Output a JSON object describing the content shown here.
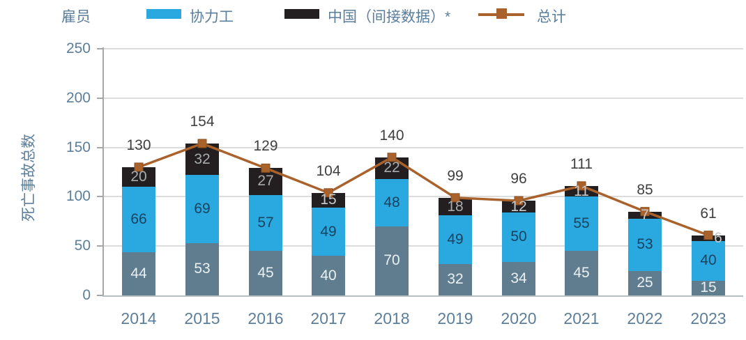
{
  "legend": {
    "items": [
      {
        "id": "employees",
        "label": "雇员",
        "swatch": "none"
      },
      {
        "id": "contractors",
        "label": "协力工",
        "swatch": "rect",
        "color": "#29A9E0"
      },
      {
        "id": "china-indirect",
        "label": "中国（间接数据）*",
        "swatch": "rect",
        "color": "#231F20"
      },
      {
        "id": "total",
        "label": "总计",
        "swatch": "line",
        "color": "#A9622C"
      }
    ]
  },
  "chart_data": {
    "type": "bar",
    "stacked": true,
    "categories": [
      "2014",
      "2015",
      "2016",
      "2017",
      "2018",
      "2019",
      "2020",
      "2021",
      "2022",
      "2023"
    ],
    "series": [
      {
        "name": "雇员",
        "color": "#5F7D8E",
        "label_color": "#EAF0F3",
        "values": [
          44,
          53,
          45,
          40,
          70,
          32,
          34,
          45,
          25,
          15
        ]
      },
      {
        "name": "协力工",
        "color": "#29A9E0",
        "label_color": "#17435F",
        "values": [
          66,
          69,
          57,
          49,
          48,
          49,
          50,
          55,
          53,
          40
        ]
      },
      {
        "name": "中国（间接数据）*",
        "color": "#231F20",
        "label_color": "#A8ABAD",
        "label_color_small": "#C6CBCE",
        "values": [
          20,
          32,
          27,
          15,
          22,
          18,
          12,
          11,
          7,
          6
        ]
      }
    ],
    "line_series": {
      "name": "总计",
      "color": "#A9622C",
      "marker": "square",
      "marker_edge_color": "#8A5022",
      "values": [
        130,
        154,
        129,
        104,
        140,
        99,
        96,
        111,
        85,
        61
      ],
      "label_color": "#3F3F3F"
    },
    "ylabel": "死亡事故总数",
    "ylim": [
      0,
      250
    ],
    "yticks": [
      0,
      50,
      100,
      150,
      200,
      250
    ],
    "grid": true,
    "legend_position": "top",
    "axis_text_color": "#5B7E9B"
  }
}
